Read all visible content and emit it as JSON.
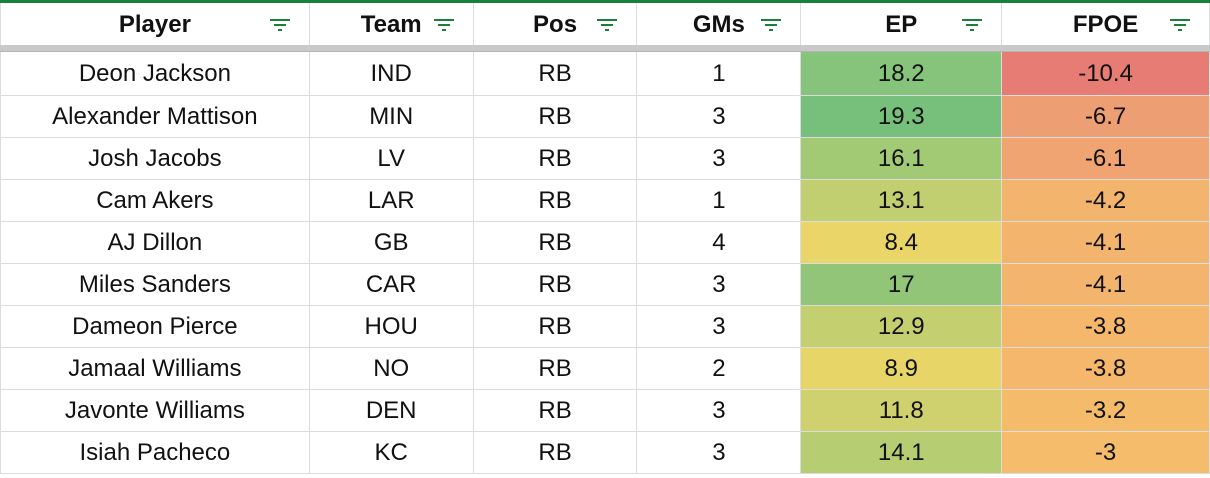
{
  "headers": [
    {
      "key": "player",
      "label": "Player"
    },
    {
      "key": "team",
      "label": "Team"
    },
    {
      "key": "pos",
      "label": "Pos"
    },
    {
      "key": "gms",
      "label": "GMs"
    },
    {
      "key": "ep",
      "label": "EP"
    },
    {
      "key": "fpoe",
      "label": "FPOE"
    }
  ],
  "colors": {
    "header_accent": "#188038",
    "filter_icon": "#188038",
    "gridline": "#dadce0",
    "freeze_bar": "#c9c9c9",
    "scale_green": "#76c07b",
    "scale_yellow": "#eed466",
    "scale_red": "#e67c73"
  },
  "rows": [
    {
      "player": "Deon Jackson",
      "team": "IND",
      "pos": "RB",
      "gms": "1",
      "ep": "18.2",
      "fpoe": "-10.4",
      "ep_color": "#86c47b",
      "fpoe_color": "#e67c73"
    },
    {
      "player": "Alexander Mattison",
      "team": "MIN",
      "pos": "RB",
      "gms": "3",
      "ep": "19.3",
      "fpoe": "-6.7",
      "ep_color": "#76c07b",
      "fpoe_color": "#ee9e73"
    },
    {
      "player": "Josh Jacobs",
      "team": "LV",
      "pos": "RB",
      "gms": "3",
      "ep": "16.1",
      "fpoe": "-6.1",
      "ep_color": "#a2c974",
      "fpoe_color": "#efa472"
    },
    {
      "player": "Cam Akers",
      "team": "LAR",
      "pos": "RB",
      "gms": "1",
      "ep": "13.1",
      "fpoe": "-4.2",
      "ep_color": "#c2cf71",
      "fpoe_color": "#f3b46d"
    },
    {
      "player": "AJ Dillon",
      "team": "GB",
      "pos": "RB",
      "gms": "4",
      "ep": "8.4",
      "fpoe": "-4.1",
      "ep_color": "#ead568",
      "fpoe_color": "#f3b56d"
    },
    {
      "player": "Miles Sanders",
      "team": "CAR",
      "pos": "RB",
      "gms": "3",
      "ep": "17",
      "fpoe": "-4.1",
      "ep_color": "#92c578",
      "fpoe_color": "#f3b56d"
    },
    {
      "player": "Dameon Pierce",
      "team": "HOU",
      "pos": "RB",
      "gms": "3",
      "ep": "12.9",
      "fpoe": "-3.8",
      "ep_color": "#c4cf70",
      "fpoe_color": "#f4b76c"
    },
    {
      "player": "Jamaal Williams",
      "team": "NO",
      "pos": "RB",
      "gms": "2",
      "ep": "8.9",
      "fpoe": "-3.8",
      "ep_color": "#e8d568",
      "fpoe_color": "#f4b76c"
    },
    {
      "player": "Javonte Williams",
      "team": "DEN",
      "pos": "RB",
      "gms": "3",
      "ep": "11.8",
      "fpoe": "-3.2",
      "ep_color": "#cfd16e",
      "fpoe_color": "#f4bb6b"
    },
    {
      "player": "Isiah Pacheco",
      "team": "KC",
      "pos": "RB",
      "gms": "3",
      "ep": "14.1",
      "fpoe": "-3",
      "ep_color": "#b6cd72",
      "fpoe_color": "#f5bd6b"
    }
  ]
}
